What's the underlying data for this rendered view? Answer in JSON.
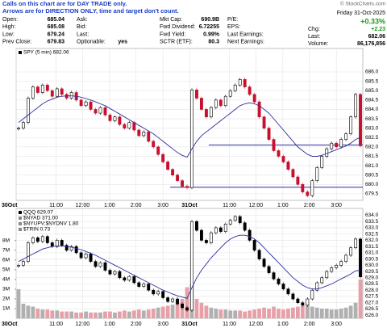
{
  "header": {
    "notes": [
      "Calls on this chart are for DAY TRADE only.",
      "Arrows are for DIRECTION ONLY, time and target don't count."
    ],
    "credit": "© StockCharts.com",
    "columns": [
      [
        [
          "Open:",
          "685.04"
        ],
        [
          "High:",
          "685.08"
        ],
        [
          "Low:",
          "679.24"
        ],
        [
          "Prev Close:",
          "679.83"
        ]
      ],
      [
        [
          "Ask:"
        ],
        [
          "Bid:"
        ],
        [
          "Last:"
        ],
        [
          "Optionable:",
          "yes"
        ]
      ],
      [
        [
          "Mkt Cap:",
          "690.9B"
        ],
        [
          "Fwd Dividend:",
          "6.72255"
        ],
        [
          "Fwd Yield:",
          "0.99%"
        ],
        [
          "SCTR (ETF):",
          "80.3"
        ]
      ],
      [
        [
          "P/E:"
        ],
        [
          "EPS:"
        ],
        [
          "Last Earnings:"
        ],
        [
          "Next Earnings:"
        ]
      ]
    ],
    "date": "Friday  31-Oct-2025",
    "change_pct": "+0.33%",
    "right": [
      [
        "Chg:",
        "+2.23"
      ],
      [
        "Last:",
        "682.06"
      ],
      [
        "Volume:",
        "86,176,856"
      ]
    ]
  },
  "chart_data": [
    {
      "type": "candlestick",
      "legend": [
        "SPY (5 min) 682.06"
      ],
      "up_color": "#000000",
      "down_color": "#c8102e",
      "ma_color": "#2b2fa0",
      "line_color": "#2b2fa0",
      "xlim": [
        0,
        72
      ],
      "xticks": [
        {
          "value": 0,
          "label": "30Oct"
        },
        {
          "value": 8.3,
          "label": "11:00"
        },
        {
          "value": 13.8,
          "label": "12:00"
        },
        {
          "value": 19.4,
          "label": "1:00"
        },
        {
          "value": 24.9,
          "label": "2:00"
        },
        {
          "value": 30.5,
          "label": "3:00"
        },
        {
          "value": 36,
          "label": "31Oct"
        },
        {
          "value": 44.3,
          "label": "11:00"
        },
        {
          "value": 49.8,
          "label": "12:00"
        },
        {
          "value": 55.4,
          "label": "1:00"
        },
        {
          "value": 60.9,
          "label": "2:00"
        },
        {
          "value": 66.5,
          "label": "3:00"
        }
      ],
      "ylim": [
        679.15,
        687.25
      ],
      "yticks": [
        679.5,
        {
          "value": 680,
          "label": "680.0"
        },
        680.5,
        {
          "value": 681,
          "label": "681.0"
        },
        681.5,
        {
          "value": 682,
          "label": "682.0"
        },
        682.5,
        {
          "value": 683,
          "label": "683.0"
        },
        683.5,
        {
          "value": 684,
          "label": "684.0"
        },
        684.5,
        {
          "value": 685,
          "label": "685.0"
        },
        685.5,
        {
          "value": 686,
          "label": "686.0"
        }
      ],
      "close": [
        683.0,
        683.3,
        684.6,
        685.2,
        684.9,
        685.3,
        685.0,
        684.7,
        685.1,
        684.8,
        684.6,
        684.9,
        684.5,
        684.2,
        684.4,
        684.0,
        683.8,
        684.1,
        683.7,
        683.4,
        683.6,
        683.2,
        683.0,
        683.3,
        682.9,
        682.6,
        682.8,
        682.3,
        682.0,
        681.6,
        681.2,
        680.8,
        680.5,
        680.2,
        679.9,
        679.83,
        685.04,
        684.6,
        684.0,
        683.6,
        684.1,
        684.5,
        684.2,
        684.7,
        685.0,
        685.3,
        685.6,
        685.2,
        684.8,
        684.4,
        683.6,
        683.0,
        682.4,
        681.8,
        681.5,
        681.2,
        680.8,
        680.4,
        680.0,
        679.6,
        679.4,
        680.2,
        680.9,
        681.5,
        681.9,
        682.2,
        682.0,
        682.4,
        682.7,
        683.6,
        684.8,
        682.06
      ],
      "ma": [
        683.3,
        683.5,
        683.7,
        683.9,
        684.1,
        684.3,
        684.45,
        684.55,
        684.65,
        684.7,
        684.72,
        684.72,
        684.7,
        684.65,
        684.58,
        684.5,
        684.4,
        684.3,
        684.2,
        684.05,
        683.9,
        683.75,
        683.6,
        683.45,
        683.3,
        683.15,
        683.0,
        682.85,
        682.7,
        682.5,
        682.3,
        682.1,
        681.9,
        681.7,
        681.55,
        681.45,
        681.9,
        682.3,
        682.6,
        682.8,
        683.0,
        683.2,
        683.4,
        683.6,
        683.8,
        684.0,
        684.2,
        684.3,
        684.35,
        684.3,
        684.2,
        684.0,
        683.8,
        683.5,
        683.2,
        682.9,
        682.6,
        682.3,
        682.0,
        681.8,
        681.6,
        681.5,
        681.5,
        681.55,
        681.65,
        681.75,
        681.85,
        681.95,
        682.05,
        682.2,
        682.4,
        682.5
      ],
      "hlines": [
        {
          "value": 682.1,
          "from": 40,
          "to": 72
        },
        {
          "value": 679.85,
          "from": 32,
          "to": 72
        }
      ]
    },
    {
      "type": "candlestick",
      "legend": [
        "QQQ 629.07",
        "$NYAD 371.00",
        "$NYUPV:$NYDNV 1.80",
        "$TRIN 0.73"
      ],
      "up_color": "#000000",
      "down_color": "#000000",
      "ma_color": "#2b2fa0",
      "vol_up_color": "#b0b0b0",
      "vol_down_color": "#e8a0a8",
      "xlim": [
        0,
        72
      ],
      "xticks": [
        {
          "value": 0,
          "label": "30Oct"
        },
        {
          "value": 8.3,
          "label": "11:00"
        },
        {
          "value": 13.8,
          "label": "12:00"
        },
        {
          "value": 19.4,
          "label": "1:00"
        },
        {
          "value": 24.9,
          "label": "2:00"
        },
        {
          "value": 30.5,
          "label": "3:00"
        },
        {
          "value": 36,
          "label": "31Oct"
        },
        {
          "value": 44.3,
          "label": "11:00"
        },
        {
          "value": 49.8,
          "label": "12:00"
        },
        {
          "value": 55.4,
          "label": "1:00"
        },
        {
          "value": 60.9,
          "label": "2:00"
        },
        {
          "value": 66.5,
          "label": "3:00"
        }
      ],
      "ylim": [
        625.75,
        634.55
      ],
      "yticks": [
        {
          "value": 626,
          "label": "626.0"
        },
        626.5,
        {
          "value": 627,
          "label": "627.0"
        },
        627.5,
        {
          "value": 628,
          "label": "628.0"
        },
        628.5,
        {
          "value": 629,
          "label": "629.0"
        },
        629.5,
        {
          "value": 630,
          "label": "630.0"
        },
        630.5,
        {
          "value": 631,
          "label": "631.0"
        },
        631.5,
        {
          "value": 632,
          "label": "632.0"
        },
        632.5,
        {
          "value": 633,
          "label": "633.0"
        },
        633.5,
        {
          "value": 634,
          "label": "634.0"
        }
      ],
      "y2lim": [
        0,
        11300000
      ],
      "y2ticks": [
        {
          "value": 1000000,
          "label": "1M"
        },
        {
          "value": 2000000,
          "label": "2M"
        },
        {
          "value": 3000000,
          "label": "3M"
        },
        {
          "value": 4000000,
          "label": "4M"
        },
        {
          "value": 5000000,
          "label": "5M"
        },
        {
          "value": 6000000,
          "label": "6M"
        },
        {
          "value": 7000000,
          "label": "7M"
        },
        {
          "value": 8000000,
          "label": "8M"
        }
      ],
      "close": [
        630.0,
        630.3,
        631.8,
        632.2,
        631.9,
        632.3,
        631.8,
        631.5,
        632.0,
        631.6,
        631.2,
        631.5,
        631.0,
        630.6,
        630.9,
        630.3,
        629.9,
        630.2,
        629.6,
        629.3,
        629.5,
        629.0,
        628.8,
        629.1,
        628.6,
        628.3,
        628.5,
        628.0,
        627.7,
        627.9,
        627.4,
        627.1,
        627.3,
        626.9,
        626.6,
        626.4,
        633.5,
        632.8,
        632.0,
        631.8,
        632.6,
        633.0,
        632.7,
        633.3,
        633.6,
        633.9,
        633.4,
        632.8,
        632.0,
        631.2,
        630.5,
        629.9,
        629.4,
        628.9,
        628.5,
        628.1,
        627.7,
        627.3,
        627.0,
        626.8,
        627.3,
        628.0,
        628.6,
        629.0,
        629.5,
        629.8,
        630.0,
        630.3,
        630.8,
        631.4,
        632.1,
        629.07
      ],
      "ma": [
        630.3,
        630.5,
        630.7,
        630.9,
        631.1,
        631.3,
        631.4,
        631.5,
        631.55,
        631.55,
        631.5,
        631.45,
        631.35,
        631.25,
        631.1,
        630.95,
        630.8,
        630.6,
        630.4,
        630.2,
        630.0,
        629.8,
        629.6,
        629.4,
        629.2,
        629.0,
        628.8,
        628.6,
        628.4,
        628.2,
        628.0,
        627.85,
        627.7,
        627.55,
        627.45,
        627.35,
        628.2,
        629.0,
        629.6,
        630.1,
        630.6,
        631.0,
        631.4,
        631.8,
        632.1,
        632.3,
        632.4,
        632.4,
        632.3,
        632.1,
        631.8,
        631.4,
        631.0,
        630.6,
        630.2,
        629.8,
        629.4,
        629.0,
        628.7,
        628.4,
        628.2,
        628.1,
        628.1,
        628.2,
        628.35,
        628.5,
        628.7,
        628.9,
        629.1,
        629.3,
        629.55,
        629.6
      ],
      "volume": [
        3000000,
        1500000,
        1300000,
        1200000,
        1000000,
        900000,
        900000,
        800000,
        800000,
        700000,
        700000,
        700000,
        600000,
        600000,
        700000,
        600000,
        600000,
        600000,
        700000,
        700000,
        600000,
        700000,
        800000,
        700000,
        800000,
        900000,
        800000,
        900000,
        1000000,
        1100000,
        1200000,
        1300000,
        1400000,
        1600000,
        2000000,
        3200000,
        3500000,
        2000000,
        1600000,
        1300000,
        1100000,
        1000000,
        900000,
        900000,
        800000,
        800000,
        800000,
        700000,
        800000,
        900000,
        1000000,
        1100000,
        1000000,
        1200000,
        1000000,
        900000,
        1000000,
        1100000,
        1200000,
        1300000,
        1400000,
        1200000,
        1100000,
        1000000,
        1000000,
        900000,
        900000,
        1000000,
        1100000,
        1300000,
        1600000,
        4000000
      ]
    }
  ]
}
